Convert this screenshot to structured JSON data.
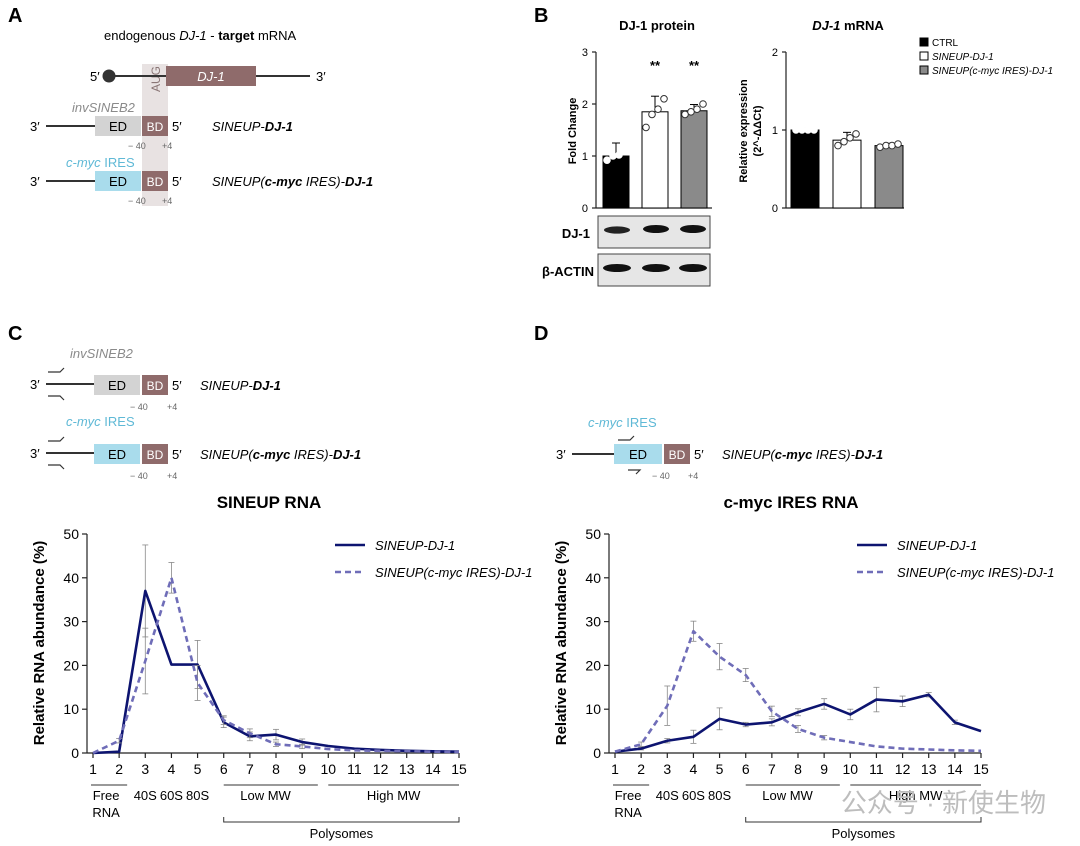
{
  "panel_labels": {
    "a": "A",
    "b": "B",
    "c": "C",
    "d": "D"
  },
  "colors": {
    "navy": "#0d1470",
    "dashed": "#6f6db8",
    "ed_grey": "#d3d3d3",
    "ed_blue": "#a9dcec",
    "bd_brown": "#8f6b6b",
    "ires_text": "#5fb9d6",
    "inv_text": "#8a8a8a",
    "aug_shade": "#e8e2e2",
    "bar_grey": "#8a8a8a"
  },
  "panel_a": {
    "title_pre": "endogenous ",
    "title_gene": "DJ-1",
    "title_mid": " - ",
    "title_bold": "target",
    "title_post": " mRNA",
    "five_prime": "5′",
    "three_prime": "3′",
    "gene_box": "DJ-1",
    "aug": "AUG",
    "construct1": {
      "label_top": "invSINEB2",
      "ed": "ED",
      "bd": "BD",
      "left_end": "3′",
      "right_end": "5′",
      "tick_left": "− 40",
      "tick_right": "+4",
      "name_pre": "SINEUP-",
      "name_bold": "DJ-1"
    },
    "construct2": {
      "label_top_italic": "c-myc",
      "label_top_rest": " IRES",
      "ed": "ED",
      "bd": "BD",
      "left_end": "3′",
      "right_end": "5′",
      "tick_left": "− 40",
      "tick_right": "+4",
      "name_pre": "SINEUP(",
      "name_bold": "c-myc",
      "name_mid": " IRES)-",
      "name_bold2": "DJ-1"
    }
  },
  "panel_b": {
    "legend": [
      "CTRL",
      "SINEUP-DJ-1",
      "SINEUP(c-myc IRES)-DJ-1"
    ],
    "blot_labels": [
      "DJ-1",
      "β-ACTIN"
    ],
    "chart_data": [
      {
        "type": "bar",
        "title": "DJ-1 protein",
        "ylabel": "Fold Change",
        "ylim": [
          0,
          3
        ],
        "yticks": [
          "0",
          "1",
          "2",
          "3"
        ],
        "categories": [
          "CTRL",
          "SINEUP-DJ-1",
          "SINEUP(c-myc IRES)-DJ-1"
        ],
        "values": [
          1.0,
          1.85,
          1.87
        ],
        "errors": [
          0.25,
          0.3,
          0.12
        ],
        "points": [
          [
            0.92,
            1.0,
            1.02,
            1.3
          ],
          [
            1.55,
            1.8,
            1.9,
            2.1
          ],
          [
            1.8,
            1.85,
            1.9,
            2.0
          ]
        ],
        "significance": [
          "",
          "**",
          "**"
        ]
      },
      {
        "type": "bar",
        "title_gene": "DJ-1",
        "title_rest": " mRNA",
        "ylabel": "Relative expression",
        "ylabel2": "(2^-ΔΔCt)",
        "ylim": [
          0,
          2
        ],
        "yticks": [
          "0",
          "1",
          "2"
        ],
        "categories": [
          "CTRL",
          "SINEUP-DJ-1",
          "SINEUP(c-myc IRES)-DJ-1"
        ],
        "values": [
          1.0,
          0.87,
          0.8
        ],
        "errors": [
          0.02,
          0.1,
          0.03
        ],
        "points": [
          [
            1.0,
            1.0,
            1.0,
            1.0
          ],
          [
            0.8,
            0.85,
            0.9,
            0.95
          ],
          [
            0.78,
            0.8,
            0.8,
            0.82
          ]
        ]
      }
    ]
  },
  "panel_c": {
    "construct1_label": "invSINEB2",
    "construct2_label_italic": "c-myc",
    "construct2_label_rest": " IRES",
    "ed": "ED",
    "bd": "BD",
    "three_prime": "3′",
    "five_prime": "5′",
    "tick_left": "− 40",
    "tick_right": "+4",
    "name1_pre": "SINEUP-",
    "name1_bold": "DJ-1",
    "name2_pre": "SINEUP(",
    "name2_bold": "c-myc",
    "name2_mid": " IRES)-",
    "name2_bold2": "DJ-1"
  },
  "panel_d": {
    "construct_label_italic": "c-myc",
    "construct_label_rest": " IRES",
    "ed": "ED",
    "bd": "BD",
    "three_prime": "3′",
    "five_prime": "5′",
    "tick_left": "− 40",
    "tick_right": "+4",
    "name_pre": "SINEUP(",
    "name_bold": "c-myc",
    "name_mid": " IRES)-",
    "name_bold2": "DJ-1"
  },
  "fraction_labels": {
    "free_rna_1": "Free",
    "free_rna_2": "RNA",
    "s40": "40S",
    "s60": "60S",
    "s80": "80S",
    "low_mw": "Low MW",
    "high_mw": "High MW",
    "polysomes": "Polysomes"
  },
  "watermark": "公众号 · 新使生物",
  "chart_data": [
    {
      "type": "line",
      "title": "SINEUP RNA",
      "ylabel": "Relative RNA abundance (%)",
      "ylim": [
        0,
        50
      ],
      "yticks": [
        0,
        10,
        20,
        30,
        40,
        50
      ],
      "x": [
        1,
        2,
        3,
        4,
        5,
        6,
        7,
        8,
        9,
        10,
        11,
        12,
        13,
        14,
        15
      ],
      "series": [
        {
          "name": "SINEUP-DJ-1",
          "style": "solid",
          "values": [
            0,
            0.3,
            37,
            20.2,
            20.2,
            7,
            3.8,
            4.2,
            2.5,
            1.6,
            1.0,
            0.7,
            0.5,
            0.4,
            0.3
          ],
          "errors": [
            0,
            0,
            10.5,
            0,
            5.5,
            1.2,
            1,
            1.2,
            0.7,
            0,
            0,
            0,
            0,
            0,
            0
          ]
        },
        {
          "name": "SINEUP(c-myc IRES)-DJ-1",
          "style": "dashed",
          "values": [
            0,
            2.8,
            21,
            40,
            16,
            7.5,
            4.5,
            2.0,
            1.5,
            0.9,
            0.6,
            0.5,
            0.4,
            0.3,
            0.2
          ],
          "errors": [
            0,
            0.5,
            7.5,
            3.5,
            4,
            1,
            1,
            0.5,
            0.5,
            0,
            0,
            0,
            0,
            0,
            0
          ]
        }
      ]
    },
    {
      "type": "line",
      "title": "c-myc IRES RNA",
      "ylabel": "Relative RNA abundance (%)",
      "ylim": [
        0,
        50
      ],
      "yticks": [
        0,
        10,
        20,
        30,
        40,
        50
      ],
      "x": [
        1,
        2,
        3,
        4,
        5,
        6,
        7,
        8,
        9,
        10,
        11,
        12,
        13,
        14,
        15
      ],
      "series": [
        {
          "name": "SINEUP-DJ-1",
          "style": "solid",
          "values": [
            0.3,
            1.0,
            2.8,
            3.7,
            7.8,
            6.5,
            7.0,
            9.3,
            11.2,
            8.8,
            12.2,
            11.8,
            13.3,
            7.0,
            5.0
          ],
          "errors": [
            0,
            0.3,
            0.5,
            1.5,
            2.5,
            0.5,
            0.8,
            0.8,
            1.2,
            1.2,
            2.8,
            1.2,
            0.5,
            0.5,
            0
          ]
        },
        {
          "name": "SINEUP(c-myc IRES)-DJ-1",
          "style": "dashed",
          "values": [
            0.3,
            2.0,
            10.8,
            27.8,
            22.0,
            17.8,
            9.5,
            5.5,
            3.5,
            2.5,
            1.5,
            1.0,
            0.8,
            0.6,
            0.5
          ],
          "errors": [
            0,
            0.5,
            4.5,
            2.3,
            3,
            1.5,
            1.2,
            0.8,
            0.5,
            0,
            0,
            0,
            0,
            0,
            0
          ]
        }
      ]
    }
  ]
}
